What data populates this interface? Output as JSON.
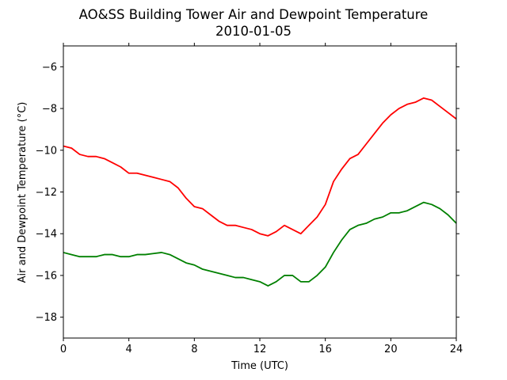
{
  "chart_data": {
    "type": "line",
    "title": "AO&SS Building Tower Air and Dewpoint Temperature",
    "subtitle": "2010-01-05",
    "xlabel": "Time (UTC)",
    "ylabel": "Air and Dewpoint Temperature (°C)",
    "xlim": [
      0,
      24
    ],
    "ylim": [
      -19,
      -5
    ],
    "x_ticks": [
      0,
      4,
      8,
      12,
      16,
      20,
      24
    ],
    "y_ticks": [
      -18,
      -16,
      -14,
      -12,
      -10,
      -8,
      -6
    ],
    "grid": false,
    "legend": "none",
    "series": [
      {
        "color": "#ff0000",
        "x": [
          0,
          0.5,
          1,
          1.5,
          2,
          2.5,
          3,
          3.5,
          4,
          4.5,
          5,
          5.5,
          6,
          6.5,
          7,
          7.5,
          8,
          8.5,
          9,
          9.5,
          10,
          10.5,
          11,
          11.5,
          12,
          12.5,
          13,
          13.5,
          14,
          14.5,
          15,
          15.5,
          16,
          16.5,
          17,
          17.5,
          18,
          18.5,
          19,
          19.5,
          20,
          20.5,
          21,
          21.5,
          22,
          22.5,
          23,
          23.5,
          24
        ],
        "values": [
          -9.8,
          -9.9,
          -10.2,
          -10.3,
          -10.3,
          -10.4,
          -10.6,
          -10.8,
          -11.1,
          -11.1,
          -11.2,
          -11.3,
          -11.4,
          -11.5,
          -11.8,
          -12.3,
          -12.7,
          -12.8,
          -13.1,
          -13.4,
          -13.6,
          -13.6,
          -13.7,
          -13.8,
          -14.0,
          -14.1,
          -13.9,
          -13.6,
          -13.8,
          -14.0,
          -13.6,
          -13.2,
          -12.6,
          -11.5,
          -10.9,
          -10.4,
          -10.2,
          -9.7,
          -9.2,
          -8.7,
          -8.3,
          -8.0,
          -7.8,
          -7.7,
          -7.5,
          -7.6,
          -7.9,
          -8.2,
          -8.5
        ]
      },
      {
        "color": "#008000",
        "x": [
          0,
          0.5,
          1,
          1.5,
          2,
          2.5,
          3,
          3.5,
          4,
          4.5,
          5,
          5.5,
          6,
          6.5,
          7,
          7.5,
          8,
          8.5,
          9,
          9.5,
          10,
          10.5,
          11,
          11.5,
          12,
          12.5,
          13,
          13.5,
          14,
          14.5,
          15,
          15.5,
          16,
          16.5,
          17,
          17.5,
          18,
          18.5,
          19,
          19.5,
          20,
          20.5,
          21,
          21.5,
          22,
          22.5,
          23,
          23.5,
          24
        ],
        "values": [
          -14.9,
          -15.0,
          -15.1,
          -15.1,
          -15.1,
          -15.0,
          -15.0,
          -15.1,
          -15.1,
          -15.0,
          -15.0,
          -14.95,
          -14.9,
          -15.0,
          -15.2,
          -15.4,
          -15.5,
          -15.7,
          -15.8,
          -15.9,
          -16.0,
          -16.1,
          -16.1,
          -16.2,
          -16.3,
          -16.5,
          -16.3,
          -16.0,
          -16.0,
          -16.3,
          -16.3,
          -16.0,
          -15.6,
          -14.9,
          -14.3,
          -13.8,
          -13.6,
          -13.5,
          -13.3,
          -13.2,
          -13.0,
          -13.0,
          -12.9,
          -12.7,
          -12.5,
          -12.6,
          -12.8,
          -13.1,
          -13.5
        ]
      }
    ]
  }
}
